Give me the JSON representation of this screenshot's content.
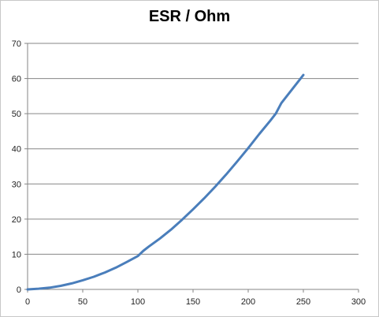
{
  "chart_data": {
    "type": "line",
    "title": "ESR / Ohm",
    "xlabel": "",
    "ylabel": "",
    "xlim": [
      0,
      300
    ],
    "ylim": [
      0,
      70
    ],
    "xticks": [
      0,
      50,
      100,
      150,
      200,
      250,
      300
    ],
    "yticks": [
      0,
      10,
      20,
      30,
      40,
      50,
      60,
      70
    ],
    "grid": "horizontal",
    "legend": "none",
    "series": [
      {
        "color": "#4a7ebb",
        "points": [
          [
            0,
            0
          ],
          [
            10,
            0.2
          ],
          [
            20,
            0.5
          ],
          [
            30,
            1.0
          ],
          [
            40,
            1.7
          ],
          [
            50,
            2.6
          ],
          [
            60,
            3.6
          ],
          [
            70,
            4.8
          ],
          [
            80,
            6.2
          ],
          [
            90,
            7.8
          ],
          [
            100,
            9.5
          ],
          [
            105,
            11.0
          ],
          [
            110,
            12.2
          ],
          [
            120,
            14.5
          ],
          [
            130,
            17.0
          ],
          [
            140,
            19.8
          ],
          [
            150,
            22.8
          ],
          [
            160,
            25.9
          ],
          [
            170,
            29.2
          ],
          [
            180,
            32.7
          ],
          [
            190,
            36.4
          ],
          [
            200,
            40.2
          ],
          [
            210,
            44.2
          ],
          [
            220,
            48.0
          ],
          [
            225,
            50.0
          ],
          [
            230,
            53.0
          ],
          [
            240,
            57.0
          ],
          [
            250,
            61.0
          ]
        ]
      }
    ]
  }
}
